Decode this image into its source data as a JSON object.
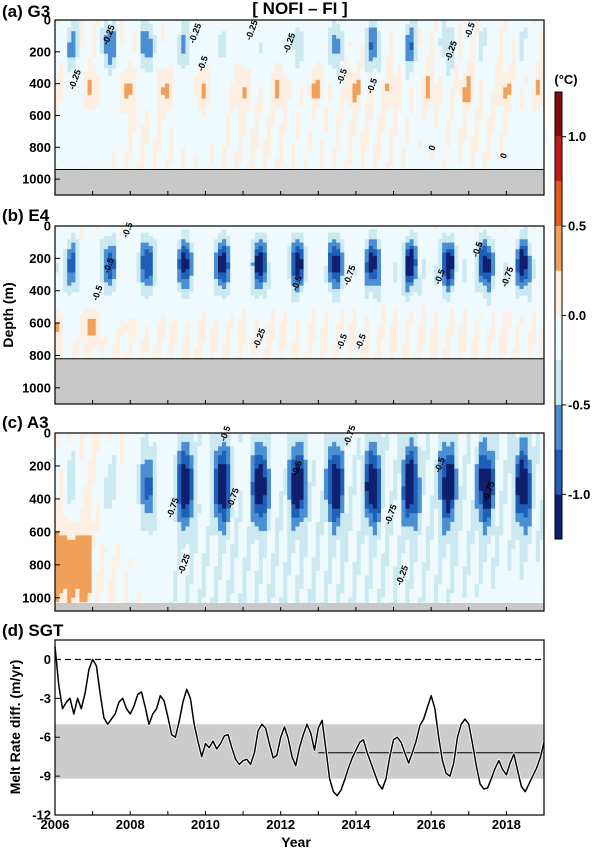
{
  "figure": {
    "header": "[ NOFI – FI ]",
    "year_axis_label": "Year",
    "depth_axis_label": "Depth (m)",
    "colorbar_unit": "(°C)"
  },
  "colorbar": {
    "ticks": [
      "1.0",
      "0.5",
      "0.0",
      "-0.5",
      "-1.0"
    ],
    "range": [
      -1.25,
      1.25
    ],
    "levels": [
      {
        "from": 1.0,
        "to": 1.25,
        "color": "#7f0d0d"
      },
      {
        "from": 0.75,
        "to": 1.0,
        "color": "#c11b1b"
      },
      {
        "from": 0.5,
        "to": 0.75,
        "color": "#e25a1c"
      },
      {
        "from": 0.25,
        "to": 0.5,
        "color": "#f0a05a"
      },
      {
        "from": 0.0,
        "to": 0.25,
        "color": "#fdf0e2"
      },
      {
        "from": -0.25,
        "to": 0.0,
        "color": "#eefafd"
      },
      {
        "from": -0.5,
        "to": -0.25,
        "color": "#cce9f2"
      },
      {
        "from": -0.75,
        "to": -0.5,
        "color": "#4a8fd4"
      },
      {
        "from": -1.0,
        "to": -0.75,
        "color": "#1e5fb8"
      },
      {
        "from": -1.25,
        "to": -1.0,
        "color": "#101f6e"
      }
    ]
  },
  "chart_data": [
    {
      "type": "heatmap",
      "title": "(a) G3",
      "ylim": [
        0,
        1100
      ],
      "xlim": [
        2006,
        2019
      ],
      "bottom_depth": 940,
      "yticks": [
        "0",
        "200",
        "400",
        "600",
        "800",
        "1000"
      ],
      "contour_labels": [
        {
          "text": "-0.25",
          "year": 2006.6,
          "depth": 380
        },
        {
          "text": "-0.25",
          "year": 2007.5,
          "depth": 100
        },
        {
          "text": "-0.25",
          "year": 2009.8,
          "depth": 90
        },
        {
          "text": "-0.25",
          "year": 2011.3,
          "depth": 70
        },
        {
          "text": "-0.25",
          "year": 2012.3,
          "depth": 150
        },
        {
          "text": "-0.5",
          "year": 2010.0,
          "depth": 280
        },
        {
          "text": "-0.5",
          "year": 2013.7,
          "depth": 360
        },
        {
          "text": "-0.5",
          "year": 2014.5,
          "depth": 420
        },
        {
          "text": "-0.5",
          "year": 2017.1,
          "depth": 70
        },
        {
          "text": "-0.25",
          "year": 2016.6,
          "depth": 200
        },
        {
          "text": "0",
          "year": 2016.1,
          "depth": 810
        },
        {
          "text": "0",
          "year": 2018.0,
          "depth": 860
        }
      ]
    },
    {
      "type": "heatmap",
      "title": "(b) E4",
      "ylim": [
        0,
        1100
      ],
      "xlim": [
        2006,
        2019
      ],
      "bottom_depth": 820,
      "yticks": [
        "0",
        "200",
        "400",
        "600",
        "800",
        "1000"
      ],
      "contour_labels": [
        {
          "text": "-0.5",
          "year": 2008.0,
          "depth": 30
        },
        {
          "text": "-0.5",
          "year": 2007.5,
          "depth": 250
        },
        {
          "text": "-0.5",
          "year": 2007.2,
          "depth": 420
        },
        {
          "text": "-0.25",
          "year": 2011.5,
          "depth": 700
        },
        {
          "text": "-0.5",
          "year": 2012.5,
          "depth": 360
        },
        {
          "text": "-0.75",
          "year": 2013.9,
          "depth": 310
        },
        {
          "text": "-0.5",
          "year": 2013.7,
          "depth": 720
        },
        {
          "text": "-0.5",
          "year": 2014.2,
          "depth": 720
        },
        {
          "text": "-0.5",
          "year": 2016.3,
          "depth": 320
        },
        {
          "text": "-0.5",
          "year": 2017.3,
          "depth": 150
        },
        {
          "text": "-0.75",
          "year": 2018.1,
          "depth": 320
        }
      ]
    },
    {
      "type": "heatmap",
      "title": "(c) A3",
      "ylim": [
        0,
        1080
      ],
      "xlim": [
        2006,
        2019
      ],
      "bottom_depth": 1080,
      "yticks": [
        "0",
        "200",
        "400",
        "600",
        "800",
        "1000"
      ],
      "contour_labels": [
        {
          "text": "-0.5",
          "year": 2010.6,
          "depth": 10
        },
        {
          "text": "-0.75",
          "year": 2013.9,
          "depth": 20
        },
        {
          "text": "-0.5",
          "year": 2012.5,
          "depth": 220
        },
        {
          "text": "-0.5",
          "year": 2016.3,
          "depth": 200
        },
        {
          "text": "-0.75",
          "year": 2009.2,
          "depth": 460
        },
        {
          "text": "-0.75",
          "year": 2010.8,
          "depth": 400
        },
        {
          "text": "-0.75",
          "year": 2015.0,
          "depth": 500
        },
        {
          "text": "-0.75",
          "year": 2017.6,
          "depth": 360
        },
        {
          "text": "-0.25",
          "year": 2009.5,
          "depth": 800
        },
        {
          "text": "-0.25",
          "year": 2015.3,
          "depth": 870
        }
      ]
    },
    {
      "type": "line",
      "title": "(d) SGT",
      "xlabel": "Year",
      "ylabel": "Melt Rate diff. (m/yr)",
      "xlim": [
        2006,
        2019
      ],
      "ylim": [
        -12,
        1.5
      ],
      "xticks": [
        "2006",
        "2008",
        "2010",
        "2012",
        "2014",
        "2016",
        "2018"
      ],
      "yticks": [
        "0",
        "-3",
        "-6",
        "-9",
        "-12"
      ],
      "zero_line": 0,
      "band": [
        -9.2,
        -5
      ],
      "mean_line": {
        "from_year": 2013.0,
        "to_year": 2019.0,
        "value": -7.2
      },
      "series": [
        {
          "x": [
            2006.0,
            2006.1,
            2006.2,
            2006.3,
            2006.4,
            2006.5,
            2006.6,
            2006.7,
            2006.8,
            2006.9,
            2007.0,
            2007.1,
            2007.2,
            2007.3,
            2007.4,
            2007.5,
            2007.6,
            2007.7,
            2007.8,
            2007.9,
            2008.0,
            2008.1,
            2008.2,
            2008.3,
            2008.4,
            2008.5,
            2008.6,
            2008.7,
            2008.8,
            2008.9,
            2009.0,
            2009.1,
            2009.2,
            2009.3,
            2009.4,
            2009.5,
            2009.6,
            2009.7,
            2009.8,
            2009.9,
            2010.0,
            2010.1,
            2010.2,
            2010.3,
            2010.4,
            2010.5,
            2010.6,
            2010.7,
            2010.8,
            2010.9,
            2011.0,
            2011.1,
            2011.2,
            2011.3,
            2011.4,
            2011.5,
            2011.6,
            2011.7,
            2011.8,
            2011.9,
            2012.0,
            2012.1,
            2012.2,
            2012.3,
            2012.4,
            2012.5,
            2012.6,
            2012.7,
            2012.8,
            2012.9,
            2013.0,
            2013.1,
            2013.2,
            2013.3,
            2013.4,
            2013.5,
            2013.6,
            2013.7,
            2013.8,
            2013.9,
            2014.0,
            2014.1,
            2014.2,
            2014.3,
            2014.4,
            2014.5,
            2014.6,
            2014.7,
            2014.8,
            2014.9,
            2015.0,
            2015.1,
            2015.2,
            2015.3,
            2015.4,
            2015.5,
            2015.6,
            2015.7,
            2015.8,
            2015.9,
            2016.0,
            2016.1,
            2016.2,
            2016.3,
            2016.4,
            2016.5,
            2016.6,
            2016.7,
            2016.8,
            2016.9,
            2017.0,
            2017.1,
            2017.2,
            2017.3,
            2017.4,
            2017.5,
            2017.6,
            2017.7,
            2017.8,
            2017.9,
            2018.0,
            2018.1,
            2018.2,
            2018.3,
            2018.4,
            2018.5,
            2018.6,
            2018.7,
            2018.8,
            2018.9,
            2019.0
          ],
          "values": [
            1.0,
            -2.0,
            -3.8,
            -3.3,
            -3.0,
            -4.2,
            -3.0,
            -3.8,
            -2.6,
            -0.8,
            0.0,
            -0.5,
            -2.6,
            -4.5,
            -5.0,
            -4.6,
            -4.2,
            -3.3,
            -3.0,
            -3.8,
            -4.2,
            -3.6,
            -2.7,
            -2.5,
            -3.7,
            -5.0,
            -4.2,
            -3.8,
            -2.8,
            -3.2,
            -4.4,
            -5.8,
            -6.0,
            -4.8,
            -3.3,
            -2.3,
            -3.0,
            -5.0,
            -6.3,
            -7.5,
            -6.5,
            -6.8,
            -6.3,
            -6.9,
            -6.5,
            -5.9,
            -5.8,
            -6.8,
            -7.7,
            -8.1,
            -7.8,
            -7.7,
            -8.1,
            -7.2,
            -5.5,
            -5.0,
            -5.3,
            -6.5,
            -7.6,
            -7.4,
            -6.0,
            -5.2,
            -6.1,
            -7.5,
            -8.2,
            -6.8,
            -5.8,
            -5.0,
            -5.7,
            -7.0,
            -5.3,
            -4.7,
            -6.9,
            -9.2,
            -10.2,
            -10.5,
            -10.1,
            -9.3,
            -8.4,
            -7.6,
            -7.0,
            -6.4,
            -6.2,
            -7.2,
            -8.0,
            -8.8,
            -9.6,
            -10.0,
            -9.2,
            -7.5,
            -6.2,
            -6.0,
            -6.4,
            -7.2,
            -8.0,
            -7.2,
            -6.3,
            -5.1,
            -4.6,
            -3.7,
            -2.8,
            -3.8,
            -6.0,
            -7.8,
            -8.8,
            -9.0,
            -8.0,
            -6.0,
            -5.0,
            -4.6,
            -5.0,
            -6.5,
            -8.2,
            -9.6,
            -10.0,
            -9.9,
            -9.2,
            -8.4,
            -7.8,
            -8.5,
            -8.9,
            -8.0,
            -7.3,
            -8.6,
            -9.8,
            -10.2,
            -9.6,
            -9.0,
            -8.4,
            -7.6,
            -6.4
          ]
        }
      ]
    }
  ]
}
